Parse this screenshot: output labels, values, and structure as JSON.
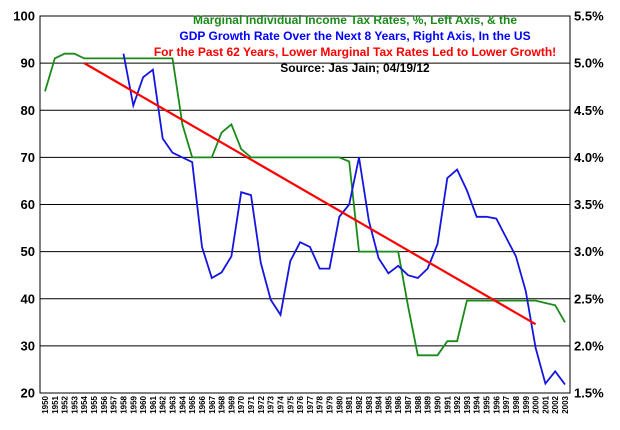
{
  "chart_data": {
    "type": "line",
    "title_lines": [
      {
        "text": "Marginal Individual Income Tax Rates, %, Left Axis, & the",
        "color": "#1a8a1a"
      },
      {
        "text": "GDP Growth Rate Over the Next 8 Years, Right Axis, In the US",
        "color": "#0000ff"
      },
      {
        "text": "For the Past 62 Years, Lower Marginal Tax Rates Led to Lower Growth!",
        "color": "#ff0000"
      },
      {
        "text": "Source: Jas Jain; 04/19/12",
        "color": "#000000"
      }
    ],
    "x": [
      "1950",
      "1951",
      "1952",
      "1953",
      "1954",
      "1955",
      "1956",
      "1957",
      "1958",
      "1959",
      "1960",
      "1961",
      "1962",
      "1963",
      "1964",
      "1965",
      "1966",
      "1967",
      "1968",
      "1969",
      "1970",
      "1971",
      "1972",
      "1973",
      "1974",
      "1975",
      "1976",
      "1977",
      "1978",
      "1979",
      "1980",
      "1981",
      "1982",
      "1983",
      "1984",
      "1985",
      "1986",
      "1987",
      "1988",
      "1989",
      "1990",
      "1991",
      "1992",
      "1993",
      "1994",
      "1995",
      "1996",
      "1997",
      "1998",
      "1999",
      "2000",
      "2001",
      "2002",
      "2003"
    ],
    "left_axis": {
      "min": 20,
      "max": 100,
      "step": 10,
      "ticks": [
        "20",
        "30",
        "40",
        "50",
        "60",
        "70",
        "80",
        "90",
        "100"
      ]
    },
    "right_axis": {
      "min": 1.5,
      "max": 5.5,
      "step": 0.5,
      "ticks": [
        "1.5%",
        "2.0%",
        "2.5%",
        "3.0%",
        "3.5%",
        "4.0%",
        "4.5%",
        "5.0%",
        "5.5%"
      ]
    },
    "series": [
      {
        "key": "tax",
        "axis": "left",
        "color": "#1a8a1a",
        "values": [
          84,
          91,
          92,
          92,
          91,
          91,
          91,
          91,
          91,
          91,
          91,
          91,
          91,
          91,
          77,
          70,
          70,
          70,
          75.25,
          77,
          71.75,
          70,
          70,
          70,
          70,
          70,
          70,
          70,
          70,
          70,
          70,
          69.13,
          50,
          50,
          50,
          50,
          50,
          38.5,
          28,
          28,
          28,
          31,
          31,
          39.6,
          39.6,
          39.6,
          39.6,
          39.6,
          39.6,
          39.6,
          39.6,
          39.1,
          38.6,
          35
        ]
      },
      {
        "key": "gdp",
        "axis": "right",
        "color": "#1515e0",
        "values": [
          null,
          null,
          null,
          null,
          null,
          null,
          null,
          null,
          5.1,
          4.55,
          4.85,
          4.93,
          4.2,
          4.05,
          4.0,
          3.95,
          3.05,
          2.72,
          2.78,
          2.95,
          3.63,
          3.6,
          2.88,
          2.49,
          2.33,
          2.9,
          3.1,
          3.05,
          2.82,
          2.82,
          3.37,
          3.5,
          4.0,
          3.33,
          2.93,
          2.77,
          2.85,
          2.75,
          2.72,
          2.82,
          3.08,
          3.78,
          3.87,
          3.65,
          3.37,
          3.37,
          3.35,
          3.15,
          2.95,
          2.58,
          1.98,
          1.6,
          1.73,
          1.59
        ]
      },
      {
        "key": "trend",
        "axis": "right",
        "color": "#ff0000",
        "x_start": "1954",
        "x_end": "2000",
        "y_start": 5.0,
        "y_end": 2.23
      }
    ]
  }
}
